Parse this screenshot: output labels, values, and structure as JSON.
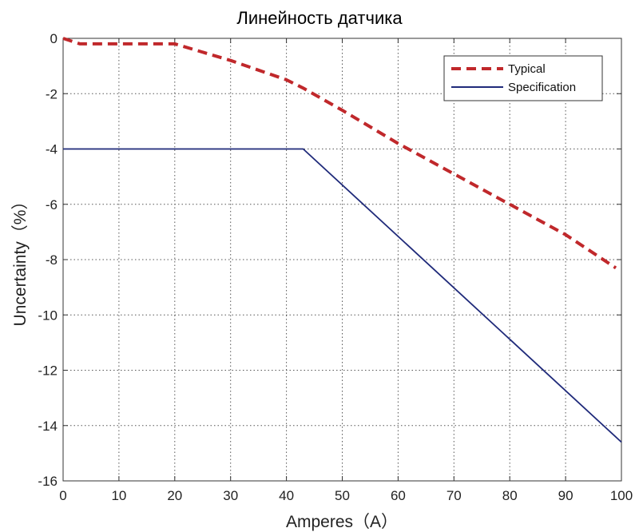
{
  "chart_data": {
    "type": "line",
    "title": "Линейность датчика",
    "xlabel": "Amperes（A）",
    "ylabel": "Uncertainty（%）",
    "xlim": [
      0,
      100
    ],
    "ylim": [
      -16,
      0
    ],
    "xticks": [
      0,
      10,
      20,
      30,
      40,
      50,
      60,
      70,
      80,
      90,
      100
    ],
    "yticks": [
      0,
      -2,
      -4,
      -6,
      -8,
      -10,
      -12,
      -14,
      -16
    ],
    "grid": true,
    "legend_position": "top-right",
    "series": [
      {
        "name": "Typical",
        "color": "#c0282b",
        "style": "dashed",
        "points": [
          [
            0,
            0
          ],
          [
            3,
            -0.2
          ],
          [
            20,
            -0.2
          ],
          [
            30,
            -0.8
          ],
          [
            40,
            -1.5
          ],
          [
            43,
            -1.8
          ],
          [
            50,
            -2.6
          ],
          [
            60,
            -3.8
          ],
          [
            70,
            -4.9
          ],
          [
            80,
            -6.0
          ],
          [
            90,
            -7.1
          ],
          [
            99,
            -8.3
          ]
        ]
      },
      {
        "name": "Specification",
        "color": "#1f2a7a",
        "style": "solid",
        "points": [
          [
            0,
            -4
          ],
          [
            43,
            -4
          ],
          [
            100,
            -14.6
          ]
        ]
      }
    ]
  }
}
